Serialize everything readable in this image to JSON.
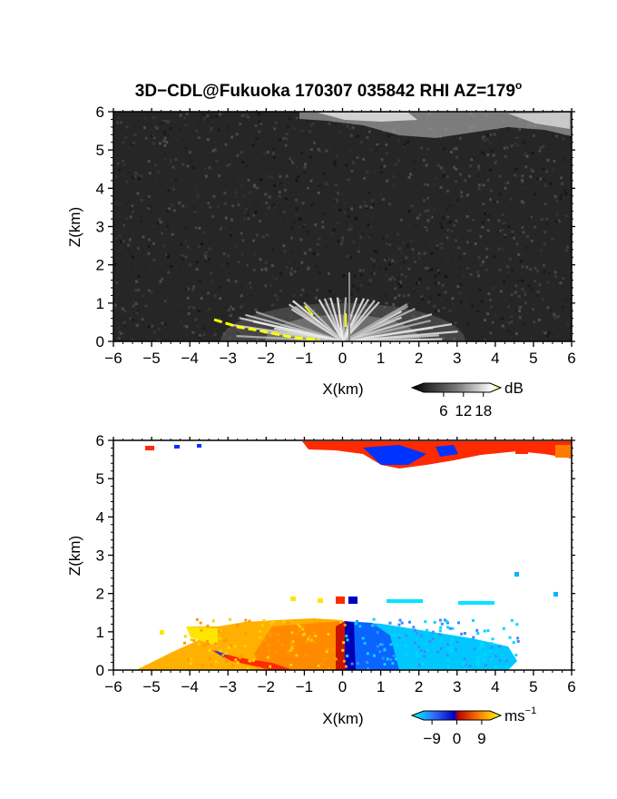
{
  "title": "3D−CDL@Fukuoka 170307 035842 RHI AZ=179",
  "title_superscript": "o",
  "chart_data": [
    {
      "type": "heatmap",
      "name": "backscatter",
      "xlabel": "X(km)",
      "ylabel": "Z(km)",
      "xlim": [
        -6,
        6
      ],
      "ylim": [
        0,
        6
      ],
      "x_ticks": [
        -6,
        -5,
        -4,
        -3,
        -2,
        -1,
        0,
        1,
        2,
        3,
        4,
        5,
        6
      ],
      "y_ticks": [
        0,
        1,
        2,
        3,
        4,
        5,
        6
      ],
      "colorbar": {
        "unit": "dB",
        "ticks": [
          6,
          12,
          18
        ],
        "range": [
          0,
          20
        ],
        "palette": "grayscale"
      },
      "features": {
        "ground_echo_fan": {
          "x_range": [
            -3.4,
            3.2
          ],
          "z_max": 1.0
        },
        "upper_layer": {
          "x_range": [
            -1.0,
            6.0
          ],
          "z_range": [
            5.5,
            6.0
          ]
        },
        "high_echo_trace": {
          "x_range": [
            -3.5,
            -0.6
          ],
          "z_range": [
            0.0,
            0.5
          ],
          "color": "#ffff00"
        }
      }
    },
    {
      "type": "heatmap",
      "name": "doppler_velocity",
      "xlabel": "X(km)",
      "ylabel": "Z(km)",
      "xlim": [
        -6,
        6
      ],
      "ylim": [
        0,
        6
      ],
      "x_ticks": [
        -6,
        -5,
        -4,
        -3,
        -2,
        -1,
        0,
        1,
        2,
        3,
        4,
        5,
        6
      ],
      "y_ticks": [
        0,
        1,
        2,
        3,
        4,
        5,
        6
      ],
      "colorbar": {
        "unit": "ms",
        "unit_exp": "−1",
        "ticks": [
          "−9",
          "0",
          "9"
        ],
        "range": [
          -12,
          12
        ],
        "palette": "cyan-blue-red-yellow"
      },
      "features": {
        "low_jet": {
          "x_range": [
            -4.2,
            3.8
          ],
          "z_range": [
            0.0,
            1.25
          ],
          "velocity_range": [
            -9,
            9
          ]
        },
        "upper_layer": {
          "x_range": [
            -1.0,
            6.0
          ],
          "z_range": [
            5.3,
            6.0
          ],
          "velocity_range": [
            -2,
            2
          ]
        }
      }
    }
  ]
}
